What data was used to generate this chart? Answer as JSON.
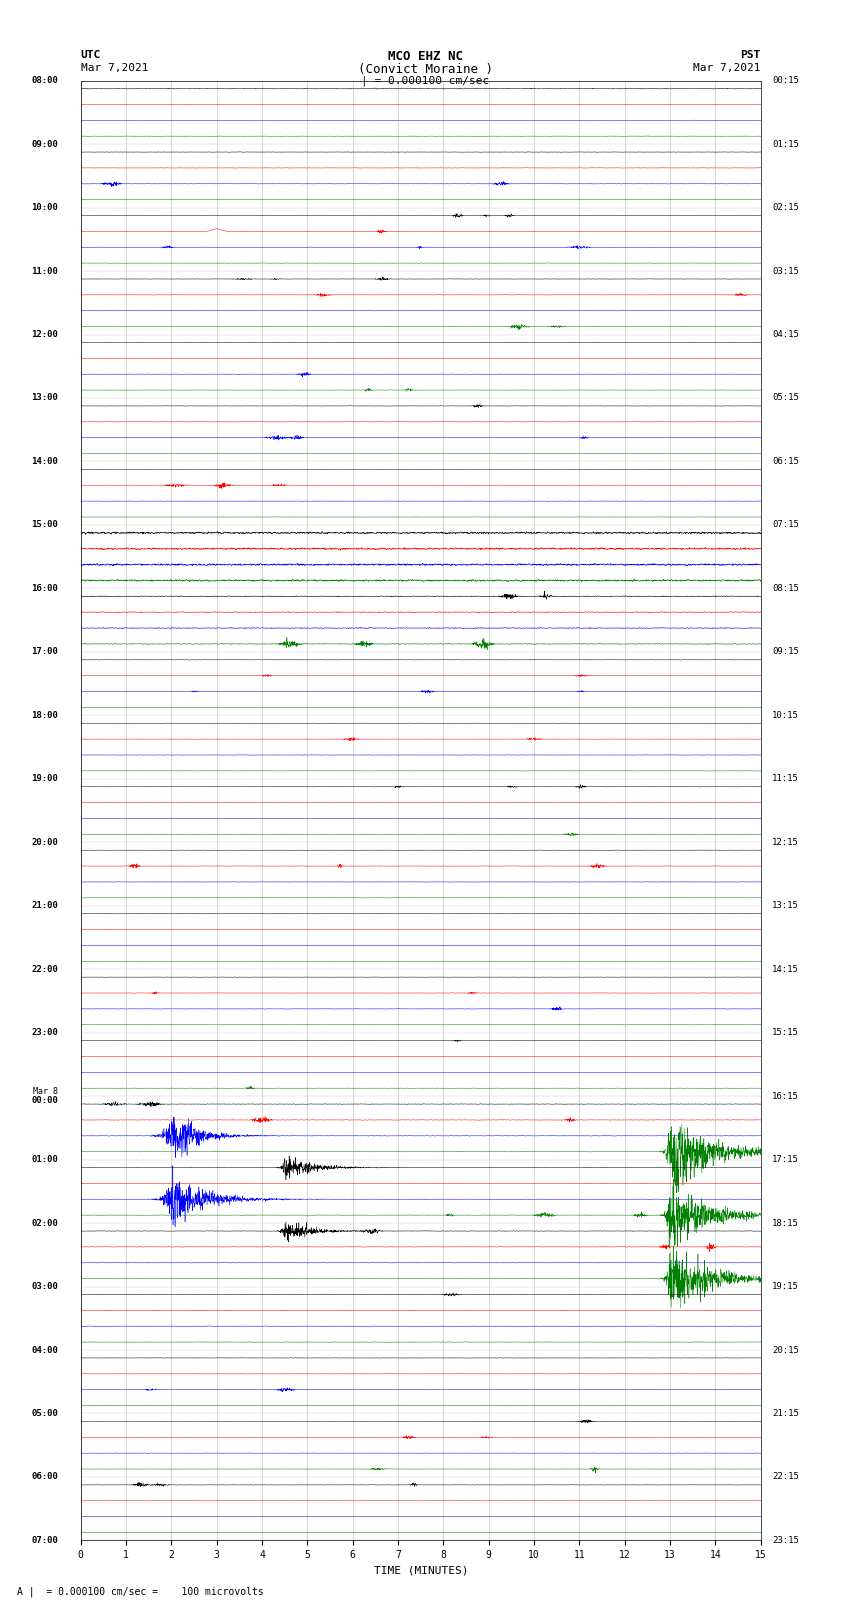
{
  "title_line1": "MCO EHZ NC",
  "title_line2": "(Convict Moraine )",
  "title_line3": "| = 0.000100 cm/sec",
  "label_utc": "UTC",
  "label_date_left": "Mar 7,2021",
  "label_pst": "PST",
  "label_date_right": "Mar 7,2021",
  "xlabel": "TIME (MINUTES)",
  "footnote": "= 0.000100 cm/sec =    100 microvolts",
  "bg_color": "#ffffff",
  "grid_color": "#999999",
  "trace_colors": [
    "black",
    "red",
    "blue",
    "green"
  ],
  "left_times": [
    "08:00",
    "",
    "",
    "",
    "09:00",
    "",
    "",
    "",
    "10:00",
    "",
    "",
    "",
    "11:00",
    "",
    "",
    "",
    "12:00",
    "",
    "",
    "",
    "13:00",
    "",
    "",
    "",
    "14:00",
    "",
    "",
    "",
    "15:00",
    "",
    "",
    "",
    "16:00",
    "",
    "",
    "",
    "17:00",
    "",
    "",
    "",
    "18:00",
    "",
    "",
    "",
    "19:00",
    "",
    "",
    "",
    "20:00",
    "",
    "",
    "",
    "21:00",
    "",
    "",
    "",
    "22:00",
    "",
    "",
    "",
    "23:00",
    "",
    "",
    "",
    "Mar 8\n00:00",
    "",
    "",
    "",
    "01:00",
    "",
    "",
    "",
    "02:00",
    "",
    "",
    "",
    "03:00",
    "",
    "",
    "",
    "04:00",
    "",
    "",
    "",
    "05:00",
    "",
    "",
    "",
    "06:00",
    "",
    "",
    "",
    "07:00",
    "",
    "",
    ""
  ],
  "right_times": [
    "00:15",
    "",
    "",
    "",
    "01:15",
    "",
    "",
    "",
    "02:15",
    "",
    "",
    "",
    "03:15",
    "",
    "",
    "",
    "04:15",
    "",
    "",
    "",
    "05:15",
    "",
    "",
    "",
    "06:15",
    "",
    "",
    "",
    "07:15",
    "",
    "",
    "",
    "08:15",
    "",
    "",
    "",
    "09:15",
    "",
    "",
    "",
    "10:15",
    "",
    "",
    "",
    "11:15",
    "",
    "",
    "",
    "12:15",
    "",
    "",
    "",
    "13:15",
    "",
    "",
    "",
    "14:15",
    "",
    "",
    "",
    "15:15",
    "",
    "",
    "",
    "16:15",
    "",
    "",
    "",
    "17:15",
    "",
    "",
    "",
    "18:15",
    "",
    "",
    "",
    "19:15",
    "",
    "",
    "",
    "20:15",
    "",
    "",
    "",
    "21:15",
    "",
    "",
    "",
    "22:15",
    "",
    "",
    "",
    "23:15",
    "",
    "",
    ""
  ],
  "num_rows": 92,
  "traces_per_row": 4,
  "x_min": 0,
  "x_max": 15,
  "x_ticks": [
    0,
    1,
    2,
    3,
    4,
    5,
    6,
    7,
    8,
    9,
    10,
    11,
    12,
    13,
    14,
    15
  ],
  "seed": 12345
}
